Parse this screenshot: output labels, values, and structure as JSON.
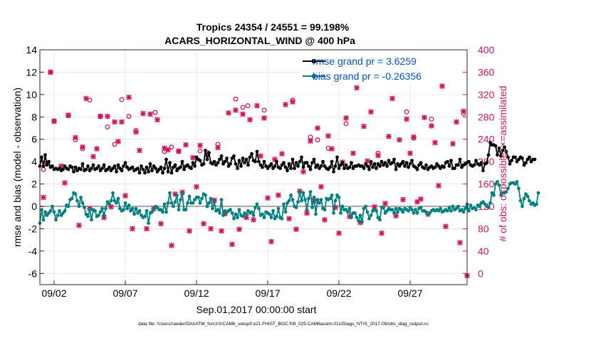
{
  "chart_data": {
    "type": "line",
    "title_line1": "Tropics 24354 / 24551 = 99.198%",
    "title_line2": "ACARS_HORIZONTAL_WIND @ 400 hPa",
    "xlabel": "Sep.01,2017 00:00:00 start",
    "ylabel_left": "rmse and bias (model - observation)",
    "ylabel_right": "# of obs: o=possible; ×=assimilated",
    "footer": "data file: /Users/raeder/DAI/ATM_forcXX/CAM6_setup/f.e21.FHIST_BGC.f09_025.CAM6assim.011/Diags_NTrS_2017-09/obs_diag_output.nc",
    "x_tick_labels": [
      "09/02",
      "09/07",
      "09/12",
      "09/17",
      "09/22",
      "09/27"
    ],
    "x_tick_days": [
      2,
      7,
      12,
      17,
      22,
      27
    ],
    "xlim_days": [
      1.0,
      31.0
    ],
    "ylim_left": [
      -7,
      14
    ],
    "left_ticks": [
      -6,
      -4,
      -2,
      0,
      2,
      4,
      6,
      8,
      10,
      12,
      14
    ],
    "left_tick_labels": [
      "-6",
      "-4",
      "-2",
      "0",
      "2",
      "4",
      "6",
      "8",
      "10",
      "12",
      "14"
    ],
    "ylim_right": [
      -20,
      400
    ],
    "right_ticks": [
      0,
      40,
      80,
      120,
      160,
      200,
      240,
      280,
      320,
      360,
      400
    ],
    "right_tick_labels": [
      "0",
      "40",
      "80",
      "120",
      "160",
      "200",
      "240",
      "280",
      "320",
      "360",
      "400"
    ],
    "legend": [
      {
        "label": "rmse grand pr = 3.6259",
        "color": "#000000"
      },
      {
        "label": "bias grand pr = -0.26356",
        "color": "#008080"
      }
    ],
    "colors": {
      "rmse": "#000000",
      "bias": "#008080",
      "obs": "#d4145a",
      "right_axis": "#d4145a",
      "legend_text": "#0050d0",
      "zero_line": "#aaaaaa",
      "grid": "#e8e0e8"
    },
    "series": [
      {
        "name": "rmse",
        "x_start_day": 1.0,
        "x_step_day": 0.125,
        "values": [
          3.6,
          4.4,
          3.6,
          4.6,
          3.7,
          4.0,
          3.5,
          3.6,
          3.3,
          3.4,
          3.3,
          3.4,
          3.2,
          3.3,
          3.6,
          3.4,
          3.3,
          3.6,
          3.5,
          3.1,
          3.5,
          3.2,
          3.4,
          3.3,
          3.8,
          3.2,
          3.3,
          3.6,
          3.2,
          3.4,
          3.7,
          3.3,
          3.4,
          3.6,
          3.2,
          3.4,
          3.7,
          3.2,
          3.3,
          3.5,
          3.2,
          3.4,
          3.6,
          3.1,
          3.7,
          3.4,
          3.2,
          3.6,
          3.9,
          3.5,
          3.3,
          3.4,
          3.5,
          3.2,
          3.3,
          3.4,
          3.0,
          3.6,
          3.3,
          3.0,
          3.5,
          3.1,
          3.8,
          3.2,
          3.6,
          3.4,
          3.1,
          3.3,
          3.5,
          3.0,
          3.4,
          4.2,
          3.1,
          3.9,
          3.0,
          3.5,
          3.7,
          3.2,
          3.4,
          3.5,
          4.0,
          3.3,
          3.6,
          3.7,
          3.5,
          3.4,
          3.9,
          3.6,
          4.4,
          4.2,
          4.1,
          3.7,
          3.8,
          5.0,
          4.2,
          4.8,
          3.9,
          3.8,
          4.0,
          3.7,
          3.9,
          4.2,
          4.5,
          3.8,
          4.0,
          4.3,
          3.6,
          3.8,
          4.3,
          4.5,
          3.8,
          3.4,
          4.1,
          3.6,
          4.3,
          3.9,
          4.2,
          3.7,
          4.4,
          4.7,
          4.1,
          4.0,
          4.9,
          4.0,
          3.7,
          3.5,
          4.0,
          3.6,
          3.4,
          3.6,
          3.8,
          3.4,
          3.6,
          4.0,
          3.5,
          3.4,
          3.7,
          3.9,
          3.5,
          3.2,
          3.8,
          3.4,
          4.2,
          3.4,
          3.9,
          3.6,
          4.0,
          4.4,
          3.5,
          3.9,
          3.9,
          3.6,
          3.3,
          3.9,
          4.2,
          3.5,
          3.7,
          3.4,
          3.6,
          4.0,
          3.6,
          3.4,
          3.3,
          3.5,
          4.0,
          3.1,
          3.6,
          4.4,
          3.4,
          3.7,
          3.9,
          3.4,
          3.7,
          3.4,
          3.5,
          3.9,
          3.4,
          3.6,
          3.6,
          3.7,
          3.6,
          3.6,
          3.4,
          3.8,
          3.6,
          3.3,
          4.0,
          3.5,
          3.8,
          3.4,
          3.8,
          3.6,
          4.0,
          3.7,
          3.9,
          3.6,
          4.1,
          3.8,
          3.9,
          4.2,
          3.3,
          3.8,
          3.6,
          3.8,
          4.0,
          3.6,
          3.9,
          3.5,
          3.8,
          4.1,
          3.6,
          3.5,
          3.3,
          3.7,
          3.9,
          3.5,
          3.4,
          3.7,
          3.3,
          3.5,
          3.6,
          3.4,
          3.5,
          3.8,
          3.6,
          3.4,
          3.6,
          3.5,
          3.9,
          4.0,
          3.6,
          4.1,
          3.4,
          3.4,
          3.7,
          3.7,
          4.2,
          3.5,
          3.7,
          3.8,
          3.9,
          4.0,
          3.7,
          3.6,
          3.7,
          4.1,
          3.8,
          3.7,
          3.9,
          3.2,
          3.8,
          3.9,
          4.6,
          5.7,
          5.5,
          5.5,
          5.4,
          4.6,
          5.2,
          4.5,
          5.0,
          5.3,
          4.9,
          4.4,
          3.8,
          4.1,
          4.4,
          4.4,
          4.0,
          4.2,
          4.4,
          4.3,
          3.7,
          3.9,
          4.2,
          4.4,
          4.0,
          4.2,
          4.2
        ]
      },
      {
        "name": "bias",
        "x_start_day": 1.0,
        "x_step_day": 0.125,
        "values": [
          -1.5,
          -0.3,
          -1.2,
          -0.5,
          -0.8,
          -0.6,
          -0.4,
          0.0,
          -0.5,
          -1.2,
          -0.8,
          -0.4,
          -0.8,
          -0.6,
          -0.4,
          0.1,
          0.0,
          0.6,
          0.7,
          1.2,
          1.1,
          0.5,
          0.0,
          0.8,
          0.3,
          -0.1,
          -0.7,
          -0.9,
          -0.3,
          -1.2,
          -0.3,
          -0.4,
          -0.9,
          -0.8,
          -0.5,
          -0.2,
          -0.8,
          -0.2,
          0.4,
          0.2,
          0.5,
          1.2,
          0.5,
          0.3,
          0.7,
          -0.2,
          -0.4,
          -0.3,
          0.3,
          -0.2,
          0.1,
          -0.4,
          -0.2,
          -0.7,
          -0.2,
          -0.6,
          -0.4,
          -0.8,
          -1.0,
          -0.9,
          -0.4,
          -1.5,
          -0.6,
          -0.5,
          -0.3,
          0.0,
          -0.1,
          -0.3,
          -0.3,
          -0.5,
          0.2,
          -0.5,
          0.3,
          1.2,
          0.3,
          0.0,
          0.4,
          1.0,
          -0.3,
          0.6,
          1.1,
          -0.3,
          -0.3,
          0.3,
          0.9,
          0.3,
          0.3,
          0.6,
          0.8,
          0.8,
          0.3,
          0.7,
          1.1,
          1.0,
          0.0,
          0.3,
          0.7,
          -0.2,
          0.4,
          -0.4,
          -0.3,
          -0.6,
          0.6,
          -0.8,
          -0.4,
          -0.5,
          -0.4,
          -0.3,
          -0.6,
          -1.1,
          -0.7,
          -1.0,
          -0.3,
          -0.8,
          -0.9,
          -0.6,
          -0.7,
          -0.4,
          -0.6,
          -0.5,
          -0.8,
          -0.1,
          0.2,
          -0.2,
          -0.8,
          -0.7,
          -1.0,
          -0.5,
          -0.6,
          -0.7,
          -1.0,
          -0.4,
          -1.1,
          -0.9,
          -0.2,
          -1.0,
          -1.1,
          0.2,
          -0.5,
          0.3,
          0.5,
          1.0,
          0.6,
          0.0,
          -0.1,
          0.4,
          1.3,
          0.5,
          1.2,
          0.6,
          -0.3,
          0.7,
          1.3,
          -0.1,
          0.8,
          -0.7,
          0.6,
          0.3,
          0.6,
          -0.2,
          -0.3,
          0.7,
          0.6,
          0.7,
          1.0,
          -0.6,
          0.5,
          1.0,
          0.8,
          -0.6,
          0.0,
          -0.3,
          -0.3,
          -0.5,
          -0.2,
          -1.0,
          -0.6,
          -0.6,
          -1.0,
          -1.3,
          -0.8,
          -1.4,
          -0.2,
          0.0,
          -0.5,
          -1.1,
          -0.8,
          -0.4,
          -0.3,
          -0.4,
          -1.0,
          -1.2,
          -0.1,
          -0.1,
          -0.6,
          -0.4,
          -0.2,
          -0.3,
          -0.3,
          -0.6,
          -0.2,
          -0.5,
          -0.2,
          -0.3,
          -0.5,
          -0.2,
          -0.3,
          -0.4,
          -0.1,
          -0.3,
          -0.6,
          -0.3,
          -0.6,
          -0.2,
          -0.1,
          -0.4,
          -0.4,
          -0.5,
          -0.7,
          -0.6,
          -0.4,
          -0.3,
          -0.4,
          -0.3,
          -0.4,
          -0.2,
          -0.5,
          -0.4,
          -0.3,
          -0.4,
          -0.1,
          -0.4,
          0.0,
          -0.3,
          -0.2,
          0.0,
          -0.4,
          -0.3,
          -0.5,
          -0.2,
          0.2,
          -0.4,
          0.1,
          -0.2,
          -0.1,
          -0.3,
          0.1,
          0.0,
          0.3,
          0.4,
          0.2,
          0.0,
          -0.1,
          0.3,
          1.2,
          1.0,
          2.0,
          2.2,
          1.9,
          1.0,
          1.2,
          1.2,
          1.3,
          1.6,
          2.0,
          2.1,
          2.1,
          2.0,
          2.2,
          1.6,
          0.5,
          0.0,
          0.7,
          1.1,
          0.9,
          0.5,
          0.2,
          0.3,
          0.1,
          0.2,
          1.2
        ]
      }
    ],
    "obs_possible": [
      [
        1.25,
        186
      ],
      [
        1.75,
        360
      ],
      [
        2.0,
        273
      ],
      [
        3.0,
        282
      ],
      [
        3.5,
        239
      ],
      [
        4.0,
        223
      ],
      [
        4.5,
        310
      ],
      [
        5.25,
        281
      ],
      [
        5.75,
        262
      ],
      [
        6.25,
        231
      ],
      [
        6.75,
        311
      ],
      [
        7.25,
        281
      ],
      [
        7.75,
        256
      ],
      [
        9.1,
        288
      ],
      [
        9.75,
        218
      ],
      [
        10.25,
        226
      ],
      [
        10.75,
        218
      ],
      [
        12.25,
        219
      ],
      [
        12.75,
        216
      ],
      [
        13.5,
        231
      ],
      [
        14.75,
        312
      ],
      [
        15.25,
        297
      ],
      [
        15.6,
        300
      ],
      [
        16.75,
        292
      ],
      [
        18.75,
        310
      ],
      [
        20.0,
        244
      ],
      [
        20.5,
        239
      ],
      [
        21.25,
        224
      ],
      [
        22.5,
        268
      ],
      [
        24.75,
        215
      ],
      [
        26.75,
        289
      ],
      [
        27.25,
        242
      ],
      [
        28.5,
        276
      ],
      [
        29.5,
        361
      ],
      [
        30.75,
        286
      ]
    ],
    "obs_assimilated": [
      [
        1.25,
        136
      ],
      [
        1.5,
        197
      ],
      [
        1.75,
        360
      ],
      [
        2.0,
        272
      ],
      [
        2.5,
        192
      ],
      [
        2.75,
        162
      ],
      [
        3.0,
        283
      ],
      [
        3.5,
        243
      ],
      [
        3.75,
        86
      ],
      [
        4.0,
        226
      ],
      [
        4.25,
        313
      ],
      [
        4.5,
        116
      ],
      [
        4.75,
        209
      ],
      [
        5.0,
        223
      ],
      [
        5.25,
        281
      ],
      [
        5.5,
        100
      ],
      [
        5.75,
        281
      ],
      [
        6.0,
        119
      ],
      [
        6.25,
        271
      ],
      [
        6.5,
        236
      ],
      [
        6.75,
        271
      ],
      [
        7.0,
        139
      ],
      [
        7.25,
        315
      ],
      [
        7.5,
        80
      ],
      [
        7.75,
        253
      ],
      [
        8.0,
        220
      ],
      [
        8.25,
        286
      ],
      [
        8.5,
        80
      ],
      [
        8.75,
        285
      ],
      [
        9.0,
        116
      ],
      [
        9.25,
        275
      ],
      [
        9.5,
        89
      ],
      [
        9.75,
        224
      ],
      [
        10.0,
        221
      ],
      [
        10.25,
        50
      ],
      [
        10.5,
        142
      ],
      [
        10.75,
        219
      ],
      [
        11.0,
        145
      ],
      [
        11.25,
        230
      ],
      [
        11.5,
        76
      ],
      [
        11.75,
        207
      ],
      [
        12.0,
        155
      ],
      [
        12.25,
        229
      ],
      [
        12.5,
        89
      ],
      [
        12.75,
        213
      ],
      [
        13.0,
        80
      ],
      [
        13.25,
        131
      ],
      [
        13.5,
        225
      ],
      [
        13.75,
        76
      ],
      [
        14.0,
        107
      ],
      [
        14.25,
        287
      ],
      [
        14.5,
        52
      ],
      [
        14.75,
        292
      ],
      [
        15.0,
        79
      ],
      [
        15.25,
        285
      ],
      [
        15.5,
        100
      ],
      [
        15.75,
        275
      ],
      [
        16.0,
        96
      ],
      [
        16.25,
        300
      ],
      [
        16.5,
        210
      ],
      [
        16.75,
        278
      ],
      [
        17.0,
        135
      ],
      [
        17.25,
        57
      ],
      [
        17.5,
        204
      ],
      [
        17.75,
        140
      ],
      [
        18.0,
        214
      ],
      [
        18.25,
        302
      ],
      [
        18.5,
        98
      ],
      [
        18.75,
        307
      ],
      [
        19.0,
        79
      ],
      [
        19.25,
        147
      ],
      [
        19.5,
        182
      ],
      [
        19.75,
        108
      ],
      [
        20.0,
        237
      ],
      [
        20.25,
        130
      ],
      [
        20.5,
        260
      ],
      [
        20.75,
        155
      ],
      [
        21.0,
        96
      ],
      [
        21.25,
        246
      ],
      [
        21.5,
        223
      ],
      [
        21.75,
        118
      ],
      [
        22.0,
        72
      ],
      [
        22.25,
        199
      ],
      [
        22.5,
        278
      ],
      [
        22.75,
        102
      ],
      [
        23.0,
        215
      ],
      [
        23.25,
        332
      ],
      [
        23.5,
        91
      ],
      [
        23.75,
        263
      ],
      [
        24.0,
        201
      ],
      [
        24.25,
        289
      ],
      [
        24.5,
        119
      ],
      [
        24.75,
        211
      ],
      [
        25.0,
        72
      ],
      [
        25.25,
        125
      ],
      [
        25.5,
        245
      ],
      [
        25.75,
        313
      ],
      [
        26.0,
        103
      ],
      [
        26.25,
        239
      ],
      [
        26.5,
        132
      ],
      [
        26.75,
        276
      ],
      [
        27.0,
        215
      ],
      [
        27.25,
        244
      ],
      [
        27.5,
        128
      ],
      [
        27.75,
        133
      ],
      [
        28.0,
        279
      ],
      [
        28.25,
        106
      ],
      [
        28.5,
        264
      ],
      [
        28.75,
        234
      ],
      [
        29.0,
        157
      ],
      [
        29.25,
        335
      ],
      [
        29.5,
        84
      ],
      [
        29.75,
        361
      ],
      [
        30.0,
        232
      ],
      [
        30.25,
        271
      ],
      [
        30.5,
        55
      ],
      [
        30.75,
        290
      ],
      [
        31.0,
        -4
      ]
    ]
  }
}
